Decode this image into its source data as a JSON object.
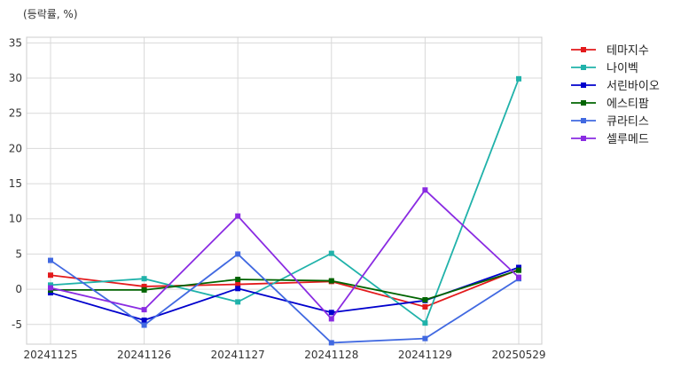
{
  "chart_data": {
    "type": "line",
    "unit_label": "(등락률, %)",
    "categories": [
      "20241125",
      "20241126",
      "20241127",
      "20241128",
      "20241129",
      "20250529"
    ],
    "ylim": [
      -7.8,
      35.8
    ],
    "yticks": [
      -5,
      0,
      5,
      10,
      15,
      20,
      25,
      30,
      35
    ],
    "grid": true,
    "legend_position": "outside-top-right",
    "series": [
      {
        "name": "테마지수",
        "color": "#e31a1c",
        "values": [
          2.0,
          0.4,
          0.7,
          1.1,
          -2.5,
          2.8
        ]
      },
      {
        "name": "나이벡",
        "color": "#20b2aa",
        "values": [
          0.6,
          1.5,
          -1.8,
          5.1,
          -4.8,
          29.9
        ]
      },
      {
        "name": "서린바이오",
        "color": "#0000cd",
        "values": [
          -0.5,
          -4.4,
          0.1,
          -3.3,
          -1.6,
          3.1
        ]
      },
      {
        "name": "에스티팜",
        "color": "#006400",
        "values": [
          -0.1,
          -0.1,
          1.4,
          1.2,
          -1.5,
          2.7
        ]
      },
      {
        "name": "큐라티스",
        "color": "#4169e1",
        "values": [
          4.1,
          -5.1,
          5.0,
          -7.6,
          -7.0,
          1.5
        ]
      },
      {
        "name": "셀루메드",
        "color": "#8a2be2",
        "values": [
          0.2,
          -2.9,
          10.4,
          -4.2,
          14.1,
          1.7
        ]
      }
    ]
  }
}
